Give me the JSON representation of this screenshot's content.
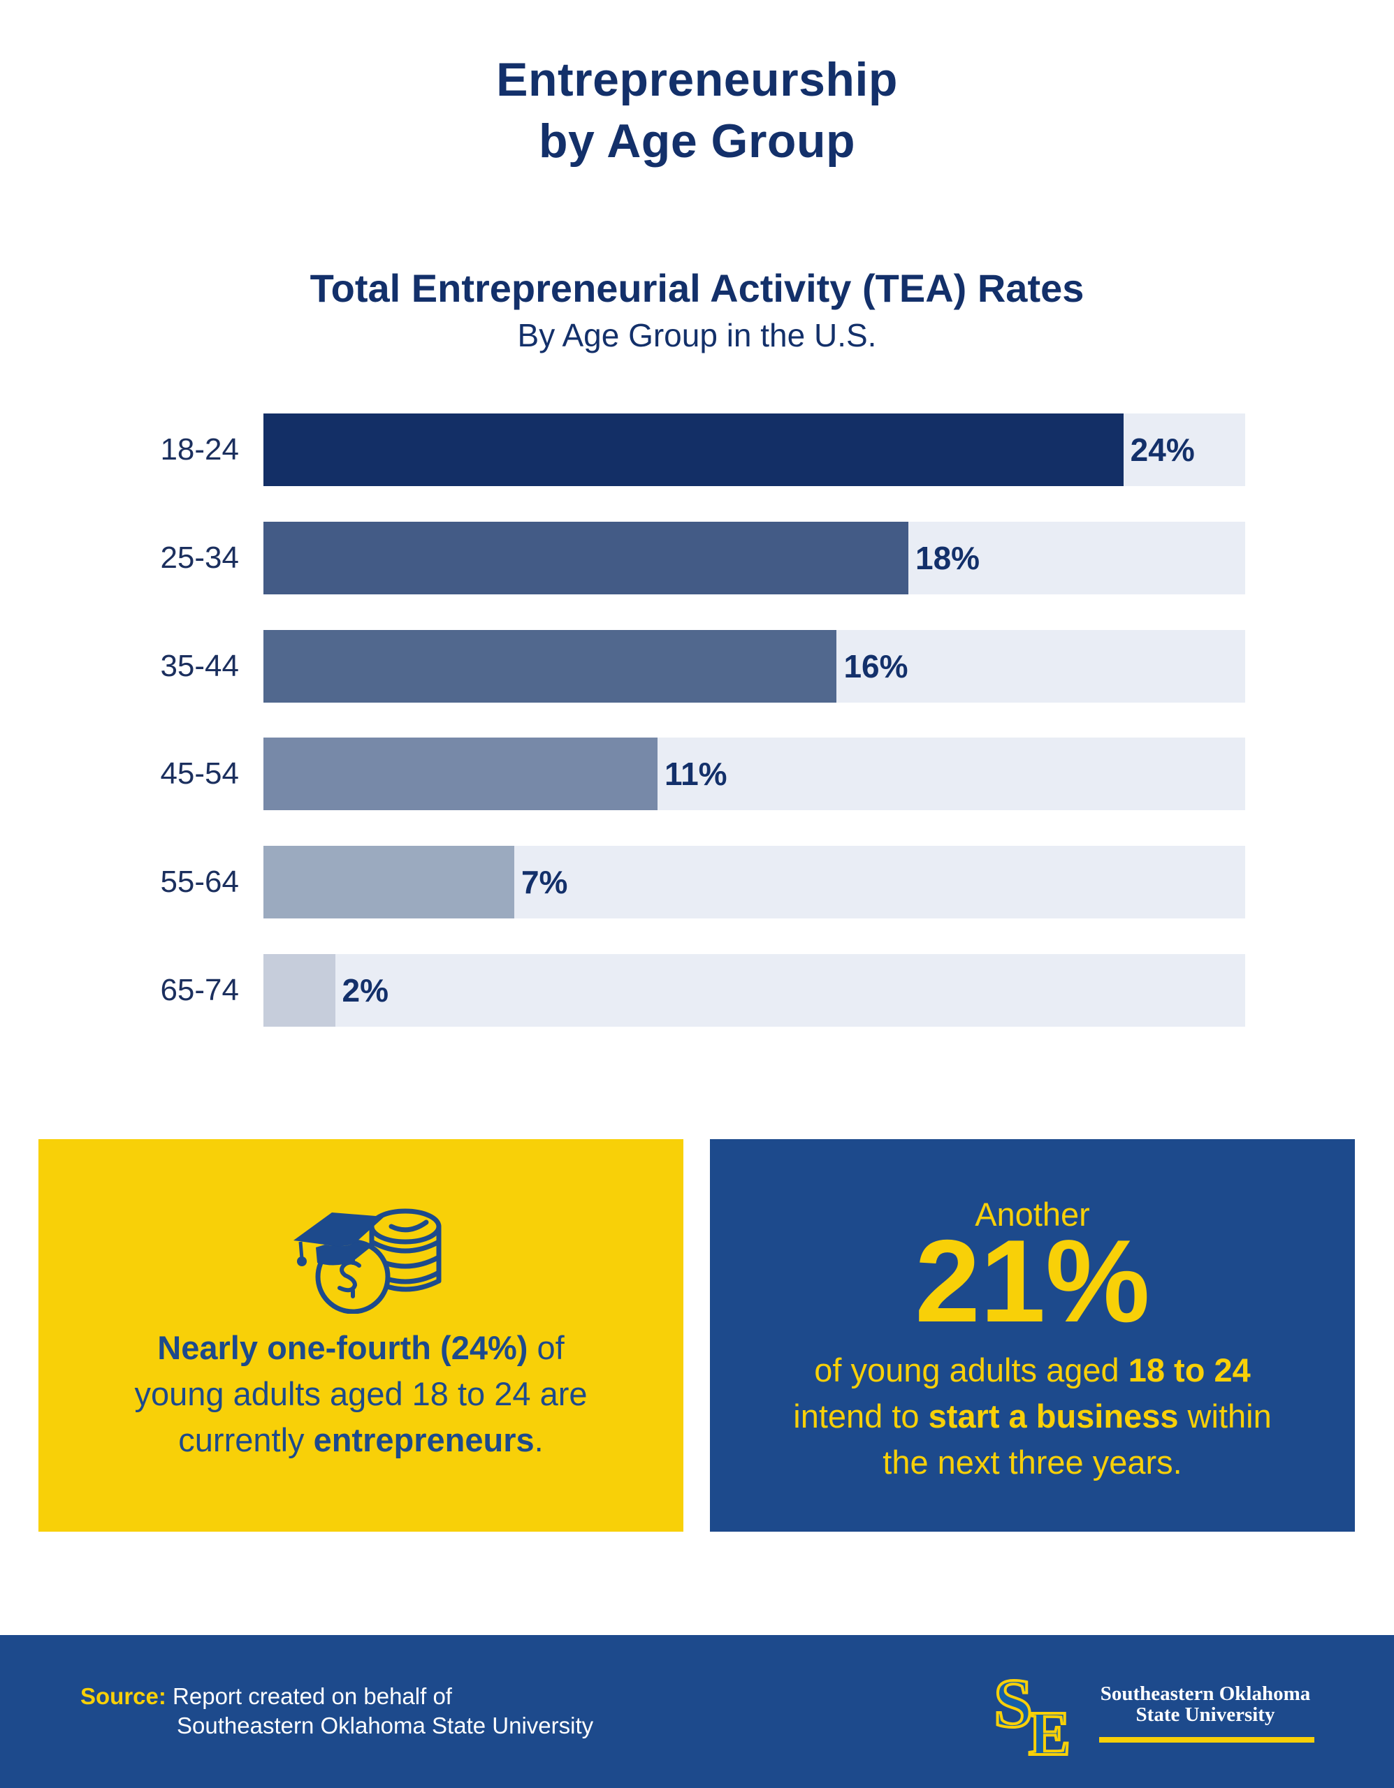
{
  "header": {
    "title_line1": "Entrepreneurship",
    "title_line2": "by Age Group"
  },
  "chart_data": {
    "type": "bar",
    "orientation": "horizontal",
    "title": "Total Entrepreneurial Activity (TEA) Rates",
    "subtitle": "By Age Group in the U.S.",
    "xlabel": "",
    "ylabel": "",
    "categories": [
      "18-24",
      "25-34",
      "35-44",
      "45-54",
      "55-64",
      "65-74"
    ],
    "values": [
      24,
      18,
      16,
      11,
      7,
      2
    ],
    "value_labels": [
      "24%",
      "18%",
      "16%",
      "11%",
      "7%",
      "2%"
    ],
    "unit": "%",
    "xlim": [
      0,
      27.4
    ],
    "grid": false,
    "legend": "none",
    "bar_colors": [
      "#132f66",
      "#435b86",
      "#51688e",
      "#7789a8",
      "#9baabf",
      "#c6cddb"
    ],
    "track_color": "#e9edf5"
  },
  "cards": {
    "yellow": {
      "icon": "graduation-cap-coins-icon",
      "line1_bold": "Nearly one-fourth (24%)",
      "line1_rest": " of",
      "line2": "young adults aged 18 to 24 are",
      "line3_pre": "currently ",
      "line3_bold": "entrepreneurs",
      "line3_post": ".",
      "background": "#f8d008",
      "text_color": "#1d4a8c"
    },
    "blue": {
      "intro": "Another",
      "big_value": "21%",
      "line1_pre": "of young adults aged ",
      "line1_bold": "18 to 24",
      "line2_pre": "intend to ",
      "line2_bold": "start a business",
      "line2_post": " within",
      "line3": "the next three years.",
      "background": "#1d4a8c",
      "text_color": "#f8d008"
    }
  },
  "footer": {
    "source_label": "Source:",
    "source_line1": " Report created on behalf of",
    "source_line2": "Southeastern Oklahoma State University",
    "logo_monogram": "SE",
    "logo_name_line1": "Southeastern Oklahoma",
    "logo_name_line2": "State University",
    "background": "#1d4a8c",
    "accent": "#f8d008"
  }
}
